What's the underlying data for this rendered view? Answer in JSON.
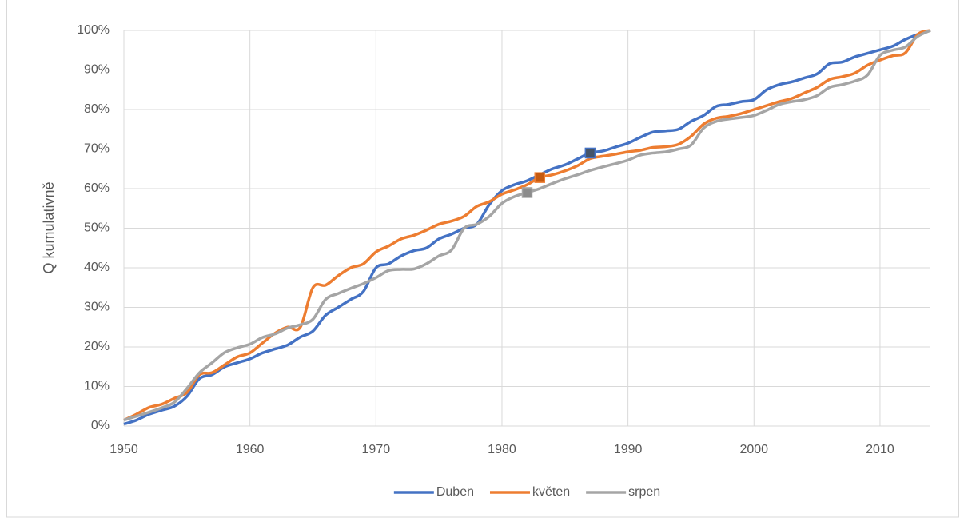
{
  "chart_data": {
    "type": "line",
    "y_label": "Q kumulativně",
    "xlim": [
      1950,
      2014
    ],
    "xticks": [
      1950,
      1960,
      1970,
      1980,
      1990,
      2000,
      2010
    ],
    "ylim": [
      0,
      100
    ],
    "yticks": [
      {
        "value": 0,
        "label": "0%"
      },
      {
        "value": 10,
        "label": "10%"
      },
      {
        "value": 20,
        "label": "20%"
      },
      {
        "value": 30,
        "label": "30%"
      },
      {
        "value": 40,
        "label": "40%"
      },
      {
        "value": 50,
        "label": "50%"
      },
      {
        "value": 60,
        "label": "60%"
      },
      {
        "value": 70,
        "label": "70%"
      },
      {
        "value": 80,
        "label": "80%"
      },
      {
        "value": 90,
        "label": "90%"
      },
      {
        "value": 100,
        "label": "100%"
      }
    ],
    "grid": true,
    "legend": "bottom",
    "x": [
      1950,
      1951,
      1952,
      1953,
      1954,
      1955,
      1956,
      1957,
      1958,
      1959,
      1960,
      1961,
      1962,
      1963,
      1964,
      1965,
      1966,
      1967,
      1968,
      1969,
      1970,
      1971,
      1972,
      1973,
      1974,
      1975,
      1976,
      1977,
      1978,
      1979,
      1980,
      1981,
      1982,
      1983,
      1984,
      1985,
      1986,
      1987,
      1988,
      1989,
      1990,
      1991,
      1992,
      1993,
      1994,
      1995,
      1996,
      1997,
      1998,
      1999,
      2000,
      2001,
      2002,
      2003,
      2004,
      2005,
      2006,
      2007,
      2008,
      2009,
      2010,
      2011,
      2012,
      2013,
      2014
    ],
    "series": [
      {
        "name": "Duben",
        "color": "#4472c4",
        "values": [
          0.5,
          1.5,
          3,
          4,
          5,
          7.5,
          12,
          13,
          15,
          16,
          17,
          18.5,
          19.5,
          20.5,
          22.5,
          24,
          28,
          30,
          32,
          34,
          40,
          41,
          43,
          44.3,
          45,
          47.3,
          48.5,
          50,
          51,
          56,
          59.5,
          61,
          62,
          63.5,
          65,
          66,
          67.5,
          69,
          69.5,
          70.5,
          71.5,
          73,
          74.3,
          74.6,
          75,
          77,
          78.5,
          80.8,
          81.3,
          82,
          82.5,
          85,
          86.3,
          87,
          88,
          89,
          91.6,
          92,
          93.3,
          94.2,
          95.1,
          96,
          97.7,
          99,
          100
        ],
        "marker": {
          "x": 1987,
          "y": 69,
          "color": "#44546a"
        }
      },
      {
        "name": "květen",
        "color": "#ed7d31",
        "values": [
          1.5,
          3,
          4.7,
          5.5,
          7,
          8.5,
          13,
          13.5,
          15.5,
          17.5,
          18.5,
          21,
          23.5,
          25,
          25,
          35,
          35.6,
          38,
          40,
          41,
          44,
          45.5,
          47.3,
          48.2,
          49.5,
          51,
          51.8,
          53,
          55.5,
          56.7,
          58.6,
          59.7,
          61,
          62.8,
          63.5,
          64.5,
          65.8,
          67.6,
          68.2,
          68.7,
          69.3,
          69.7,
          70.4,
          70.6,
          71.2,
          73.2,
          76.3,
          77.8,
          78.3,
          79,
          80,
          81,
          82,
          82.8,
          84.2,
          85.6,
          87.6,
          88.3,
          89.2,
          91.2,
          92.5,
          93.6,
          94.3,
          99,
          100
        ],
        "marker": {
          "x": 1983,
          "y": 62.8,
          "color": "#c55a11"
        }
      },
      {
        "name": "srpen",
        "color": "#a5a5a5",
        "values": [
          1.5,
          2.5,
          3.5,
          4.6,
          6,
          9.5,
          13.5,
          16,
          18.6,
          19.8,
          20.7,
          22.4,
          23.3,
          24.8,
          25.6,
          27,
          32,
          33.5,
          34.8,
          36,
          37.5,
          39.3,
          39.6,
          39.7,
          41,
          43,
          44.5,
          50,
          51,
          53,
          56.3,
          58,
          59,
          60,
          61.3,
          62.5,
          63.5,
          64.6,
          65.5,
          66.3,
          67.2,
          68.5,
          69,
          69.3,
          70,
          71,
          75.3,
          77,
          77.6,
          78,
          78.5,
          79.8,
          81.3,
          82,
          82.5,
          83.5,
          85.6,
          86.3,
          87.2,
          88.7,
          93.7,
          95,
          95.8,
          98.5,
          100
        ],
        "marker": {
          "x": 1982,
          "y": 59,
          "color": "#8c8c8c"
        }
      }
    ]
  }
}
